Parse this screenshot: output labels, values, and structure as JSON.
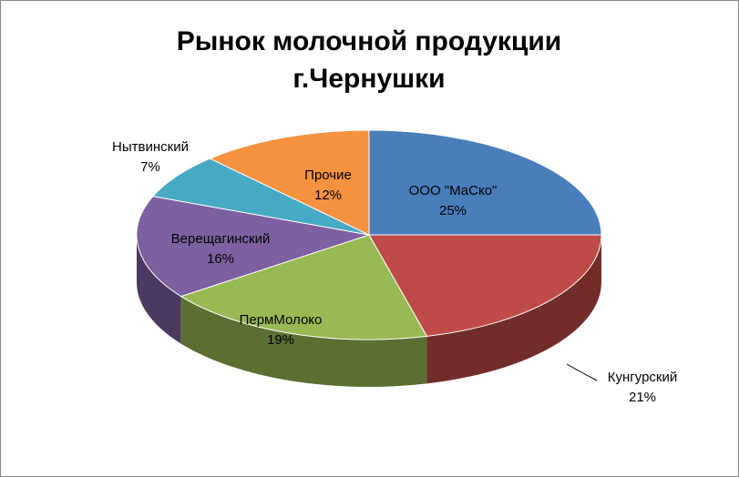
{
  "chart_data": {
    "type": "pie3d",
    "title": [
      "Рынок молочной продукции",
      "г.Чернушки"
    ],
    "categories": [
      "ООО \"МаСко\"",
      "Кунгурский",
      "ПермМолоко",
      "Верещагинский",
      "Нытвинский",
      "Прочие"
    ],
    "values": [
      25,
      21,
      19,
      16,
      7,
      12
    ],
    "value_labels": [
      "25%",
      "21%",
      "19%",
      "16%",
      "7%",
      "12%"
    ],
    "colors": [
      "#4a7ebb",
      "#be4b48",
      "#98b954",
      "#7d60a0",
      "#46aac5",
      "#f69240"
    ]
  }
}
